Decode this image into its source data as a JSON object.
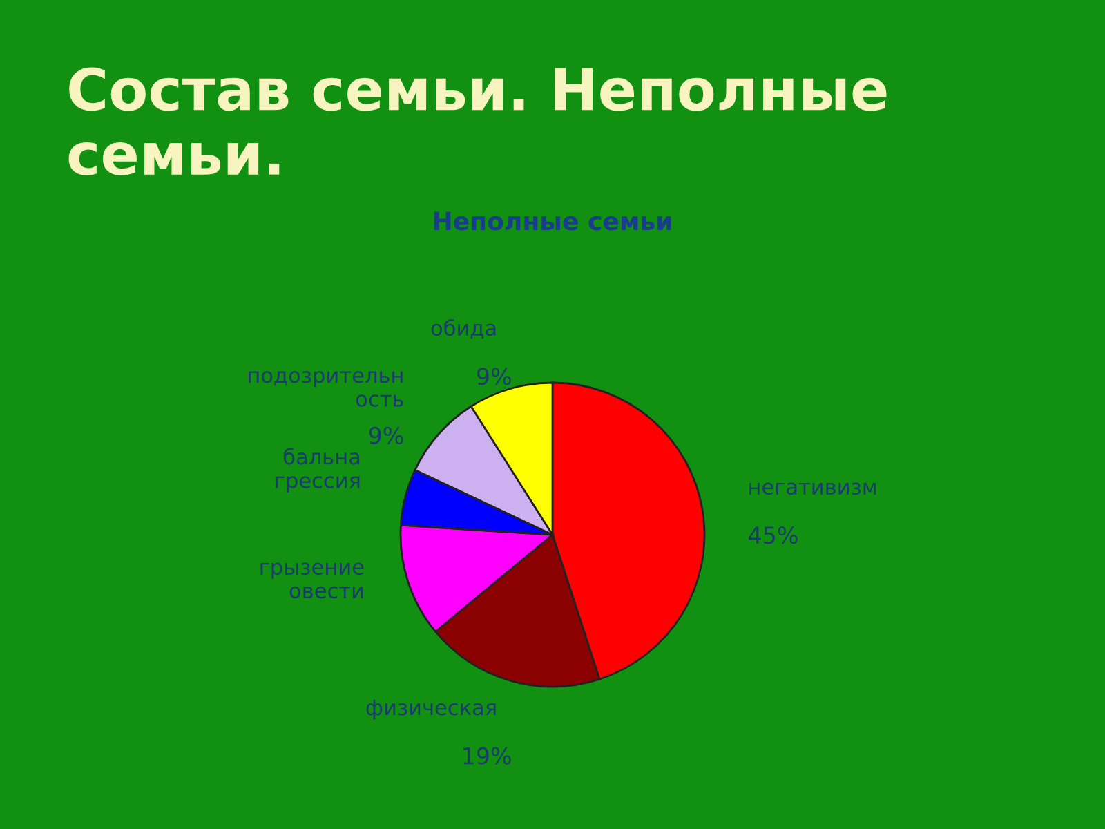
{
  "chart_data": {
    "type": "pie",
    "title": "Состав семьи. Неполные семьи.",
    "subtitle": "Неполные семьи",
    "categories": [
      "негативизм",
      "физическая",
      "грызение\nовести",
      "бальна\nгрессия",
      "подозрительн\nость",
      "обида"
    ],
    "values": [
      45,
      19,
      12,
      6,
      9,
      9
    ],
    "colors": [
      "#ff0000",
      "#8b0000",
      "#ff00ff",
      "#0000ff",
      "#ccb0f0",
      "#ffff00"
    ],
    "value_labels": [
      "45%",
      "19%",
      null,
      null,
      "9%",
      "9%"
    ]
  }
}
